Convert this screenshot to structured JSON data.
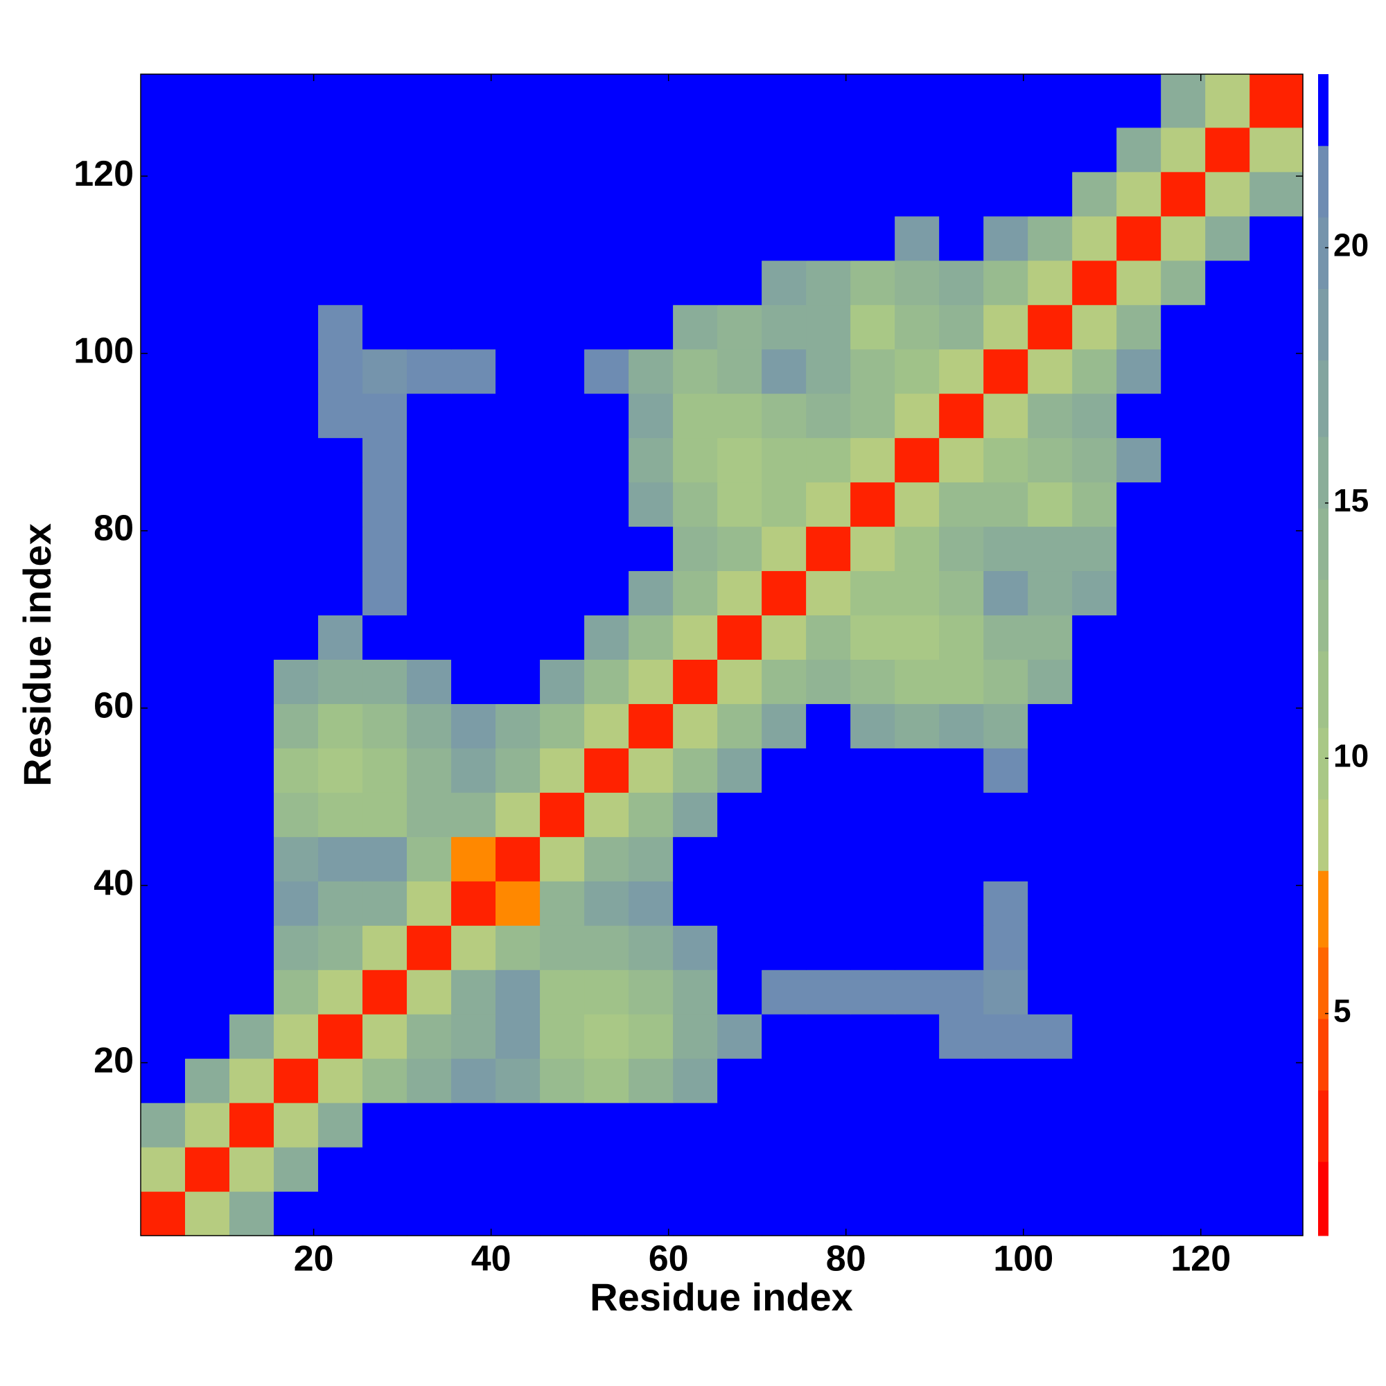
{
  "chart_data": {
    "type": "heatmap",
    "xlabel": "Residue index",
    "ylabel": "Residue index",
    "xlim": [
      0.5,
      131.5
    ],
    "ylim": [
      0.5,
      131.5
    ],
    "xticks": [
      20,
      40,
      60,
      80,
      100,
      120
    ],
    "yticks": [
      20,
      40,
      60,
      80,
      100,
      120
    ],
    "x_edges": [
      0.5,
      5.5,
      10.5,
      15.5,
      20.5,
      25.5,
      30.5,
      35.5,
      40.5,
      45.5,
      50.5,
      55.5,
      60.5,
      65.5,
      70.5,
      75.5,
      80.5,
      85.5,
      90.5,
      95.5,
      100.5,
      105.5,
      110.5,
      115.5,
      120.5,
      125.5,
      131.5
    ],
    "y_edges": [
      0.5,
      5.5,
      10.5,
      15.5,
      20.5,
      25.5,
      30.5,
      35.5,
      40.5,
      45.5,
      50.5,
      55.5,
      60.5,
      65.5,
      70.5,
      75.5,
      80.5,
      85.5,
      90.5,
      95.5,
      100.5,
      105.5,
      110.5,
      115.5,
      120.5,
      125.5,
      131.5
    ],
    "z": [
      [
        3,
        9,
        16,
        23,
        23,
        23,
        23,
        23,
        23,
        23,
        23,
        23,
        23,
        23,
        23,
        23,
        23,
        23,
        23,
        23,
        23,
        23,
        23,
        23,
        23,
        23
      ],
      [
        9,
        3,
        9,
        16,
        23,
        23,
        23,
        23,
        23,
        23,
        23,
        23,
        23,
        23,
        23,
        23,
        23,
        23,
        23,
        23,
        23,
        23,
        23,
        23,
        23,
        23
      ],
      [
        16,
        9,
        3,
        9,
        15,
        23,
        23,
        23,
        23,
        23,
        23,
        23,
        23,
        23,
        23,
        23,
        23,
        23,
        23,
        23,
        23,
        23,
        23,
        23,
        23,
        23
      ],
      [
        23,
        16,
        9,
        3,
        8,
        13,
        16,
        18,
        17,
        13,
        12,
        14,
        17,
        23,
        23,
        23,
        23,
        23,
        23,
        23,
        23,
        23,
        23,
        23,
        23,
        23
      ],
      [
        23,
        23,
        15,
        8,
        3,
        9,
        14,
        16,
        19,
        12,
        10,
        11,
        15,
        19,
        23,
        23,
        23,
        23,
        21,
        21,
        21,
        23,
        23,
        23,
        23,
        23
      ],
      [
        23,
        23,
        23,
        13,
        9,
        3,
        9,
        15,
        18,
        12,
        11,
        13,
        16,
        23,
        21,
        21,
        21,
        21,
        21,
        20,
        23,
        23,
        23,
        23,
        23,
        23
      ],
      [
        23,
        23,
        23,
        16,
        14,
        9,
        3,
        8,
        13,
        14,
        14,
        15,
        19,
        23,
        23,
        23,
        23,
        23,
        23,
        21,
        23,
        23,
        23,
        23,
        23,
        23
      ],
      [
        23,
        23,
        23,
        18,
        16,
        15,
        8,
        3,
        7,
        14,
        17,
        18,
        23,
        23,
        23,
        23,
        23,
        23,
        23,
        21,
        23,
        23,
        23,
        23,
        23,
        23
      ],
      [
        23,
        23,
        23,
        17,
        19,
        18,
        13,
        7,
        3,
        8,
        14,
        15,
        23,
        23,
        23,
        23,
        23,
        23,
        23,
        23,
        23,
        23,
        23,
        23,
        23,
        23
      ],
      [
        23,
        23,
        23,
        13,
        12,
        12,
        14,
        14,
        8,
        3,
        8,
        13,
        17,
        23,
        23,
        23,
        23,
        23,
        23,
        23,
        23,
        23,
        23,
        23,
        23,
        23
      ],
      [
        23,
        23,
        23,
        12,
        10,
        11,
        14,
        17,
        14,
        8,
        3,
        8,
        13,
        17,
        23,
        23,
        23,
        23,
        23,
        21,
        23,
        23,
        23,
        23,
        23,
        23
      ],
      [
        23,
        23,
        23,
        14,
        11,
        13,
        15,
        18,
        15,
        13,
        8,
        3,
        8,
        13,
        17,
        23,
        17,
        16,
        17,
        16,
        23,
        23,
        23,
        23,
        23,
        23
      ],
      [
        23,
        23,
        23,
        17,
        15,
        16,
        19,
        23,
        23,
        17,
        13,
        8,
        3,
        8,
        13,
        14,
        13,
        12,
        12,
        13,
        15,
        23,
        23,
        23,
        23,
        23
      ],
      [
        23,
        23,
        23,
        23,
        19,
        23,
        23,
        23,
        23,
        23,
        17,
        13,
        8,
        3,
        8,
        13,
        10,
        10,
        11,
        14,
        14,
        23,
        23,
        23,
        23,
        23
      ],
      [
        23,
        23,
        23,
        23,
        23,
        21,
        23,
        23,
        23,
        23,
        23,
        17,
        13,
        8,
        3,
        8,
        12,
        11,
        13,
        19,
        16,
        17,
        23,
        23,
        23,
        23
      ],
      [
        23,
        23,
        23,
        23,
        23,
        21,
        23,
        23,
        23,
        23,
        23,
        23,
        14,
        13,
        8,
        3,
        8,
        12,
        14,
        15,
        15,
        16,
        23,
        23,
        23,
        23
      ],
      [
        23,
        23,
        23,
        23,
        23,
        21,
        23,
        23,
        23,
        23,
        23,
        17,
        13,
        10,
        12,
        8,
        3,
        8,
        13,
        13,
        10,
        13,
        23,
        23,
        23,
        23
      ],
      [
        23,
        23,
        23,
        23,
        23,
        21,
        23,
        23,
        23,
        23,
        23,
        16,
        12,
        10,
        11,
        12,
        8,
        3,
        8,
        11,
        13,
        14,
        19,
        23,
        23,
        23
      ],
      [
        23,
        23,
        23,
        23,
        21,
        21,
        23,
        23,
        23,
        23,
        23,
        17,
        12,
        11,
        13,
        14,
        13,
        8,
        3,
        8,
        14,
        15,
        23,
        23,
        23,
        23
      ],
      [
        23,
        23,
        23,
        23,
        21,
        20,
        21,
        21,
        23,
        23,
        21,
        16,
        13,
        14,
        19,
        15,
        13,
        11,
        8,
        3,
        8,
        13,
        18,
        23,
        23,
        23
      ],
      [
        23,
        23,
        23,
        23,
        21,
        23,
        23,
        23,
        23,
        23,
        23,
        23,
        15,
        14,
        16,
        15,
        10,
        13,
        14,
        8,
        3,
        8,
        14,
        23,
        23,
        23
      ],
      [
        23,
        23,
        23,
        23,
        23,
        23,
        23,
        23,
        23,
        23,
        23,
        23,
        23,
        23,
        17,
        16,
        13,
        14,
        15,
        13,
        8,
        3,
        8,
        14,
        23,
        23
      ],
      [
        23,
        23,
        23,
        23,
        23,
        23,
        23,
        23,
        23,
        23,
        23,
        23,
        23,
        23,
        23,
        23,
        23,
        19,
        23,
        18,
        14,
        8,
        3,
        8,
        15,
        23
      ],
      [
        23,
        23,
        23,
        23,
        23,
        23,
        23,
        23,
        23,
        23,
        23,
        23,
        23,
        23,
        23,
        23,
        23,
        23,
        23,
        23,
        23,
        14,
        8,
        3,
        9,
        15
      ],
      [
        23,
        23,
        23,
        23,
        23,
        23,
        23,
        23,
        23,
        23,
        23,
        23,
        23,
        23,
        23,
        23,
        23,
        23,
        23,
        23,
        23,
        23,
        15,
        9,
        3,
        9
      ],
      [
        23,
        23,
        23,
        23,
        23,
        23,
        23,
        23,
        23,
        23,
        23,
        23,
        23,
        23,
        23,
        23,
        23,
        23,
        23,
        23,
        23,
        23,
        23,
        15,
        9,
        3
      ]
    ],
    "colorbar": {
      "lim": [
        0.65,
        23.4
      ],
      "ticks": [
        5,
        10,
        15,
        20
      ],
      "bounds": [
        0.65,
        2.1,
        3.5,
        4.9,
        6.3,
        7.8,
        9.2,
        10.6,
        12.1,
        13.5,
        14.9,
        16.3,
        17.8,
        19.2,
        20.6,
        22.0,
        23.4
      ],
      "colors": [
        "#ff0000",
        "#ff2200",
        "#ff4400",
        "#ff6600",
        "#ff8800",
        "#b6cc80",
        "#a9c886",
        "#a0c289",
        "#98bb8f",
        "#91b494",
        "#8aad99",
        "#83a59f",
        "#7c9ca6",
        "#7594ac",
        "#6e8cb2",
        "#0000ff"
      ]
    }
  }
}
